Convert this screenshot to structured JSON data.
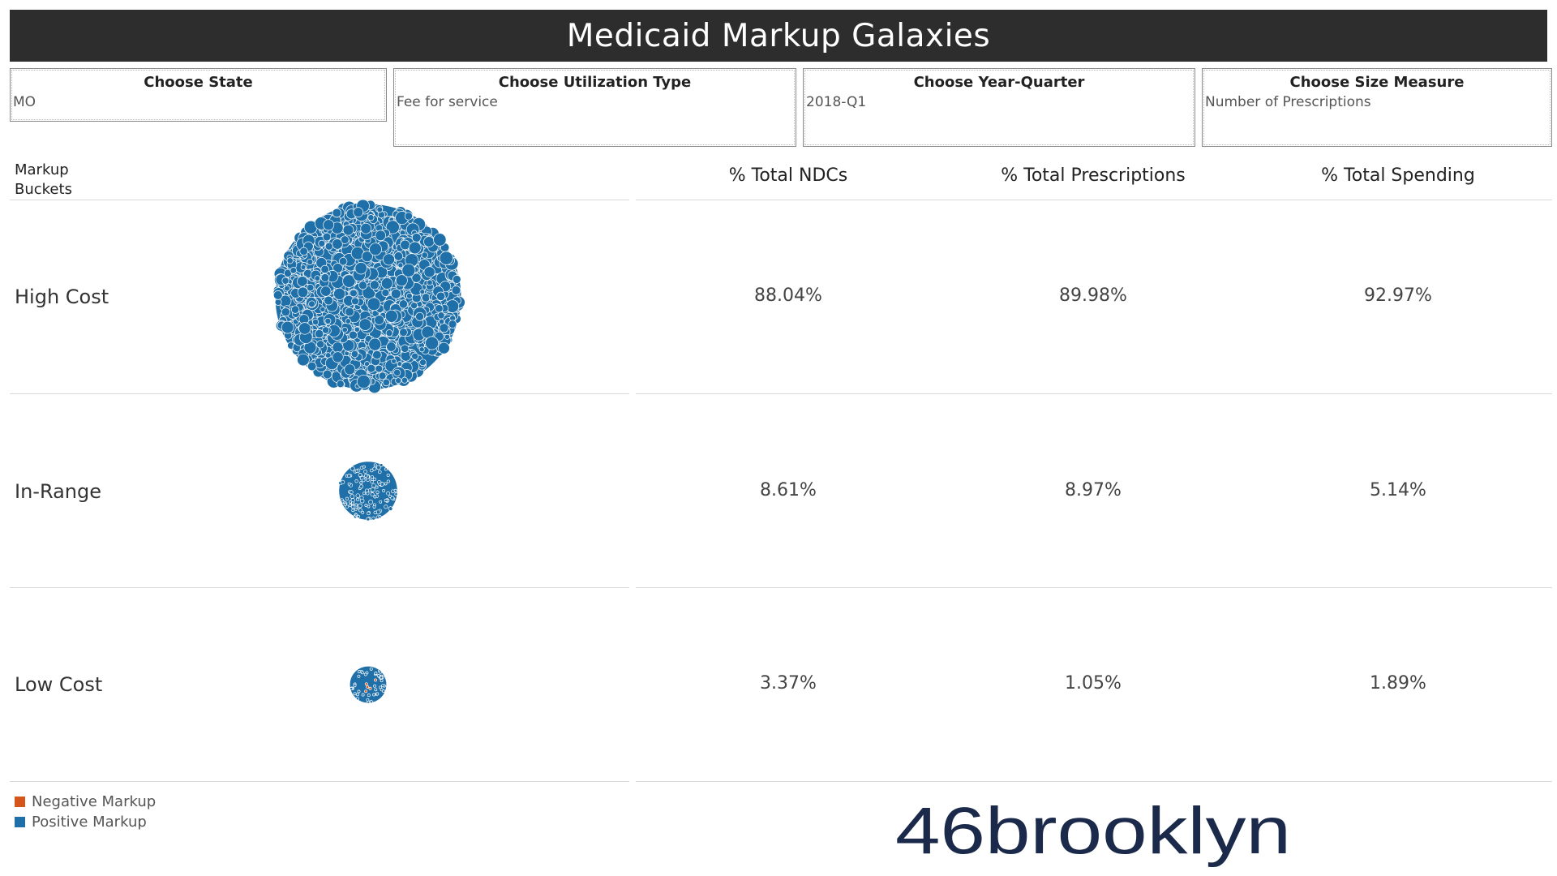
{
  "title": "Medicaid Markup Galaxies",
  "filters": [
    {
      "label": "Choose State",
      "value": "MO"
    },
    {
      "label": "Choose Utilization Type",
      "value": "Fee for service"
    },
    {
      "label": "Choose Year-Quarter",
      "value": "2018-Q1"
    },
    {
      "label": "Choose Size Measure",
      "value": "Number of Prescriptions"
    }
  ],
  "table": {
    "row_header": "Markup\nBuckets",
    "columns": [
      "% Total NDCs",
      "% Total Prescriptions",
      "% Total Spending"
    ]
  },
  "chart_data": {
    "type": "table",
    "rows": [
      {
        "bucket": "High Cost",
        "pct_ndcs": "88.04%",
        "pct_prescriptions": "89.98%",
        "pct_spending": "92.97%",
        "ndc_share": 88.04
      },
      {
        "bucket": "In-Range",
        "pct_ndcs": "8.61%",
        "pct_prescriptions": "8.97%",
        "pct_spending": "5.14%",
        "ndc_share": 8.61
      },
      {
        "bucket": "Low Cost",
        "pct_ndcs": "3.37%",
        "pct_prescriptions": "1.05%",
        "pct_spending": "1.89%",
        "ndc_share": 3.37
      }
    ],
    "legend": [
      {
        "name": "Negative Markup",
        "color": "#d4561a"
      },
      {
        "name": "Positive Markup",
        "color": "#1f6fa8"
      }
    ]
  },
  "logo": {
    "text": "46brooklyn",
    "color": "#1b2a4a"
  }
}
